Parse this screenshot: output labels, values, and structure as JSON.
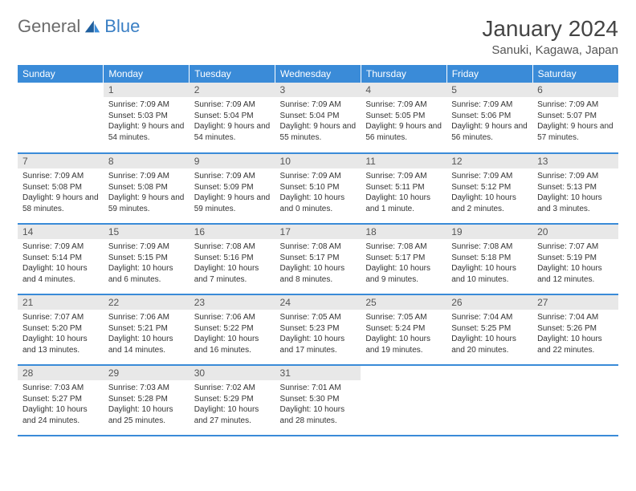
{
  "logo": {
    "part1": "General",
    "part2": "Blue"
  },
  "title": "January 2024",
  "location": "Sanuki, Kagawa, Japan",
  "colors": {
    "header_bg": "#3a8bd8",
    "header_text": "#ffffff",
    "daynum_bg": "#e8e8e8",
    "border": "#3a8bd8",
    "logo_gray": "#6b6b6b",
    "logo_blue": "#3a7fc4"
  },
  "weekdays": [
    "Sunday",
    "Monday",
    "Tuesday",
    "Wednesday",
    "Thursday",
    "Friday",
    "Saturday"
  ],
  "weeks": [
    [
      null,
      {
        "n": "1",
        "sr": "7:09 AM",
        "ss": "5:03 PM",
        "dl": "9 hours and 54 minutes."
      },
      {
        "n": "2",
        "sr": "7:09 AM",
        "ss": "5:04 PM",
        "dl": "9 hours and 54 minutes."
      },
      {
        "n": "3",
        "sr": "7:09 AM",
        "ss": "5:04 PM",
        "dl": "9 hours and 55 minutes."
      },
      {
        "n": "4",
        "sr": "7:09 AM",
        "ss": "5:05 PM",
        "dl": "9 hours and 56 minutes."
      },
      {
        "n": "5",
        "sr": "7:09 AM",
        "ss": "5:06 PM",
        "dl": "9 hours and 56 minutes."
      },
      {
        "n": "6",
        "sr": "7:09 AM",
        "ss": "5:07 PM",
        "dl": "9 hours and 57 minutes."
      }
    ],
    [
      {
        "n": "7",
        "sr": "7:09 AM",
        "ss": "5:08 PM",
        "dl": "9 hours and 58 minutes."
      },
      {
        "n": "8",
        "sr": "7:09 AM",
        "ss": "5:08 PM",
        "dl": "9 hours and 59 minutes."
      },
      {
        "n": "9",
        "sr": "7:09 AM",
        "ss": "5:09 PM",
        "dl": "9 hours and 59 minutes."
      },
      {
        "n": "10",
        "sr": "7:09 AM",
        "ss": "5:10 PM",
        "dl": "10 hours and 0 minutes."
      },
      {
        "n": "11",
        "sr": "7:09 AM",
        "ss": "5:11 PM",
        "dl": "10 hours and 1 minute."
      },
      {
        "n": "12",
        "sr": "7:09 AM",
        "ss": "5:12 PM",
        "dl": "10 hours and 2 minutes."
      },
      {
        "n": "13",
        "sr": "7:09 AM",
        "ss": "5:13 PM",
        "dl": "10 hours and 3 minutes."
      }
    ],
    [
      {
        "n": "14",
        "sr": "7:09 AM",
        "ss": "5:14 PM",
        "dl": "10 hours and 4 minutes."
      },
      {
        "n": "15",
        "sr": "7:09 AM",
        "ss": "5:15 PM",
        "dl": "10 hours and 6 minutes."
      },
      {
        "n": "16",
        "sr": "7:08 AM",
        "ss": "5:16 PM",
        "dl": "10 hours and 7 minutes."
      },
      {
        "n": "17",
        "sr": "7:08 AM",
        "ss": "5:17 PM",
        "dl": "10 hours and 8 minutes."
      },
      {
        "n": "18",
        "sr": "7:08 AM",
        "ss": "5:17 PM",
        "dl": "10 hours and 9 minutes."
      },
      {
        "n": "19",
        "sr": "7:08 AM",
        "ss": "5:18 PM",
        "dl": "10 hours and 10 minutes."
      },
      {
        "n": "20",
        "sr": "7:07 AM",
        "ss": "5:19 PM",
        "dl": "10 hours and 12 minutes."
      }
    ],
    [
      {
        "n": "21",
        "sr": "7:07 AM",
        "ss": "5:20 PM",
        "dl": "10 hours and 13 minutes."
      },
      {
        "n": "22",
        "sr": "7:06 AM",
        "ss": "5:21 PM",
        "dl": "10 hours and 14 minutes."
      },
      {
        "n": "23",
        "sr": "7:06 AM",
        "ss": "5:22 PM",
        "dl": "10 hours and 16 minutes."
      },
      {
        "n": "24",
        "sr": "7:05 AM",
        "ss": "5:23 PM",
        "dl": "10 hours and 17 minutes."
      },
      {
        "n": "25",
        "sr": "7:05 AM",
        "ss": "5:24 PM",
        "dl": "10 hours and 19 minutes."
      },
      {
        "n": "26",
        "sr": "7:04 AM",
        "ss": "5:25 PM",
        "dl": "10 hours and 20 minutes."
      },
      {
        "n": "27",
        "sr": "7:04 AM",
        "ss": "5:26 PM",
        "dl": "10 hours and 22 minutes."
      }
    ],
    [
      {
        "n": "28",
        "sr": "7:03 AM",
        "ss": "5:27 PM",
        "dl": "10 hours and 24 minutes."
      },
      {
        "n": "29",
        "sr": "7:03 AM",
        "ss": "5:28 PM",
        "dl": "10 hours and 25 minutes."
      },
      {
        "n": "30",
        "sr": "7:02 AM",
        "ss": "5:29 PM",
        "dl": "10 hours and 27 minutes."
      },
      {
        "n": "31",
        "sr": "7:01 AM",
        "ss": "5:30 PM",
        "dl": "10 hours and 28 minutes."
      },
      null,
      null,
      null
    ]
  ],
  "labels": {
    "sunrise": "Sunrise:",
    "sunset": "Sunset:",
    "daylight": "Daylight:"
  }
}
